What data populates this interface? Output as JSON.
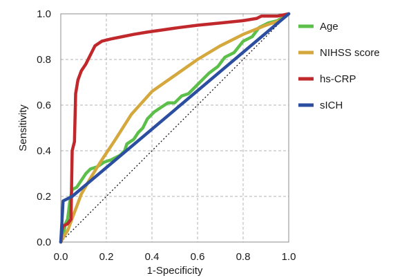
{
  "chart_data": {
    "type": "line",
    "title": "",
    "xlabel": "1-Specificity",
    "ylabel": "Sensitivity",
    "xlim": [
      0,
      1
    ],
    "ylim": [
      0,
      1
    ],
    "xticks": [
      "0.0",
      "0.2",
      "0.4",
      "0.6",
      "0.8",
      "1.0"
    ],
    "yticks": [
      "0.0",
      "0.2",
      "0.4",
      "0.6",
      "0.8",
      "1.0"
    ],
    "grid": true,
    "legend_position": "right",
    "reference_line": {
      "style": "dotted",
      "color": "#000000",
      "x": [
        0,
        1
      ],
      "y": [
        0,
        1
      ]
    },
    "series": [
      {
        "name": "Age",
        "color": "#5cbf4a",
        "points": [
          [
            0,
            0
          ],
          [
            0.01,
            0.02
          ],
          [
            0.02,
            0.08
          ],
          [
            0.03,
            0.1
          ],
          [
            0.04,
            0.18
          ],
          [
            0.05,
            0.23
          ],
          [
            0.07,
            0.24
          ],
          [
            0.09,
            0.27
          ],
          [
            0.11,
            0.3
          ],
          [
            0.13,
            0.32
          ],
          [
            0.16,
            0.33
          ],
          [
            0.19,
            0.35
          ],
          [
            0.22,
            0.36
          ],
          [
            0.26,
            0.38
          ],
          [
            0.28,
            0.4
          ],
          [
            0.29,
            0.43
          ],
          [
            0.32,
            0.45
          ],
          [
            0.34,
            0.48
          ],
          [
            0.36,
            0.5
          ],
          [
            0.38,
            0.54
          ],
          [
            0.41,
            0.57
          ],
          [
            0.44,
            0.59
          ],
          [
            0.47,
            0.61
          ],
          [
            0.5,
            0.61
          ],
          [
            0.53,
            0.64
          ],
          [
            0.56,
            0.65
          ],
          [
            0.59,
            0.68
          ],
          [
            0.62,
            0.71
          ],
          [
            0.65,
            0.74
          ],
          [
            0.69,
            0.77
          ],
          [
            0.72,
            0.81
          ],
          [
            0.76,
            0.83
          ],
          [
            0.8,
            0.88
          ],
          [
            0.84,
            0.9
          ],
          [
            0.87,
            0.94
          ],
          [
            0.91,
            0.96
          ],
          [
            0.95,
            0.97
          ],
          [
            1.0,
            1.0
          ]
        ]
      },
      {
        "name": "NIHSS score",
        "color": "#d4a83c",
        "points": [
          [
            0,
            0
          ],
          [
            0.01,
            0.02
          ],
          [
            0.03,
            0.05
          ],
          [
            0.06,
            0.13
          ],
          [
            0.09,
            0.21
          ],
          [
            0.13,
            0.28
          ],
          [
            0.18,
            0.36
          ],
          [
            0.24,
            0.45
          ],
          [
            0.31,
            0.56
          ],
          [
            0.4,
            0.66
          ],
          [
            0.5,
            0.73
          ],
          [
            0.6,
            0.8
          ],
          [
            0.7,
            0.86
          ],
          [
            0.8,
            0.91
          ],
          [
            0.9,
            0.95
          ],
          [
            0.96,
            0.97
          ],
          [
            1.0,
            1.0
          ]
        ]
      },
      {
        "name": "hs-CRP",
        "color": "#c0282c",
        "points": [
          [
            0,
            0
          ],
          [
            0.005,
            0.05
          ],
          [
            0.01,
            0.07
          ],
          [
            0.03,
            0.08
          ],
          [
            0.045,
            0.1
          ],
          [
            0.05,
            0.4
          ],
          [
            0.06,
            0.44
          ],
          [
            0.065,
            0.65
          ],
          [
            0.075,
            0.71
          ],
          [
            0.09,
            0.75
          ],
          [
            0.11,
            0.78
          ],
          [
            0.13,
            0.82
          ],
          [
            0.15,
            0.86
          ],
          [
            0.18,
            0.88
          ],
          [
            0.22,
            0.89
          ],
          [
            0.27,
            0.9
          ],
          [
            0.32,
            0.91
          ],
          [
            0.38,
            0.92
          ],
          [
            0.45,
            0.93
          ],
          [
            0.52,
            0.94
          ],
          [
            0.6,
            0.95
          ],
          [
            0.7,
            0.96
          ],
          [
            0.8,
            0.97
          ],
          [
            0.86,
            0.98
          ],
          [
            0.88,
            0.99
          ],
          [
            0.95,
            0.99
          ],
          [
            1.0,
            1.0
          ]
        ]
      },
      {
        "name": "sICH",
        "color": "#2c4ea0",
        "points": [
          [
            0,
            0
          ],
          [
            0.005,
            0.09
          ],
          [
            0.01,
            0.18
          ],
          [
            0.05,
            0.2
          ],
          [
            1.0,
            1.0
          ]
        ]
      }
    ]
  }
}
